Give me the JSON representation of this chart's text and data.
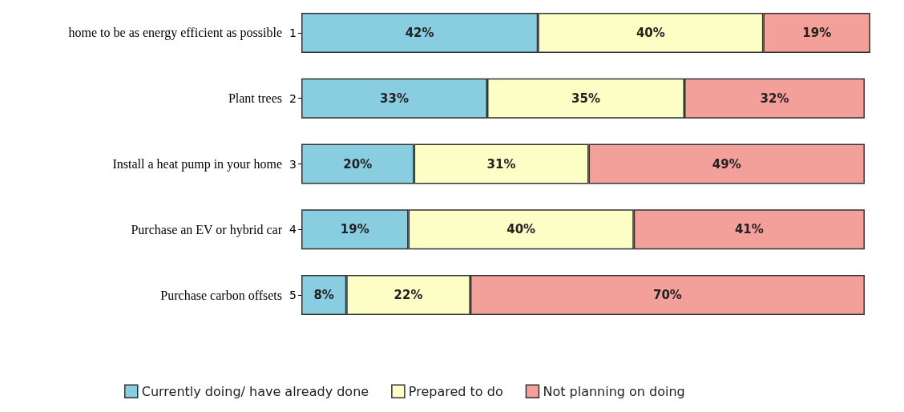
{
  "chart_data": {
    "type": "bar",
    "orientation": "horizontal",
    "stacked": true,
    "categories": [
      "home to be as energy efficient as possible",
      "Plant trees",
      "Install a heat pump in your home",
      "Purchase an EV or hybrid car",
      "Purchase carbon offsets"
    ],
    "annotations": [
      "1",
      "2",
      "3",
      "4",
      "5"
    ],
    "series": [
      {
        "name": "Currently doing/ have already done",
        "color": "#89cde0",
        "values": [
          42,
          33,
          20,
          19,
          8
        ],
        "value_labels": [
          "42%",
          "33%",
          "20%",
          "19%",
          "8%"
        ]
      },
      {
        "name": "Prepared to do",
        "color": "#fdfdc6",
        "values": [
          40,
          35,
          31,
          40,
          22
        ],
        "value_labels": [
          "40%",
          "35%",
          "31%",
          "40%",
          "22%"
        ]
      },
      {
        "name": "Not planning on doing",
        "color": "#f4a09a",
        "values": [
          19,
          32,
          49,
          41,
          70
        ],
        "value_labels": [
          "19%",
          "32%",
          "49%",
          "41%",
          "70%"
        ]
      }
    ],
    "legend": "bottom"
  }
}
